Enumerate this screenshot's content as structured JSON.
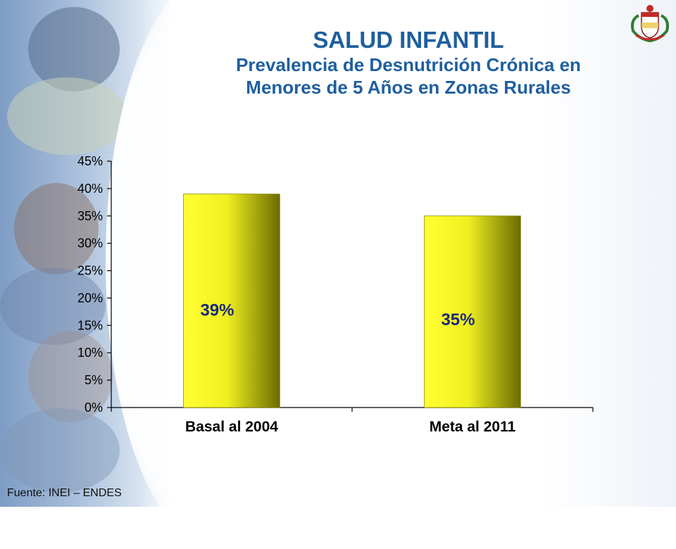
{
  "title": "SALUD INFANTIL",
  "subtitle_line1": "Prevalencia de Desnutrición Crónica en",
  "subtitle_line2": "Menores de 5 Años en Zonas Rurales",
  "source": "Fuente: INEI – ENDES",
  "colors": {
    "title": "#1f5f9e",
    "bar_light": "#ffff33",
    "bar_dark": "#6b6b00",
    "axis": "#000000"
  },
  "icons": {
    "emblem": "peru-coat-of-arms-icon"
  },
  "chart_data": {
    "type": "bar",
    "categories": [
      "Basal al 2004",
      "Meta al 2011"
    ],
    "values": [
      39,
      35
    ],
    "data_labels": [
      "39%",
      "35%"
    ],
    "ylim": [
      0,
      45
    ],
    "yticks": [
      "0%",
      "5%",
      "10%",
      "15%",
      "20%",
      "25%",
      "30%",
      "35%",
      "40%",
      "45%"
    ],
    "grid": false,
    "legend": "none"
  }
}
